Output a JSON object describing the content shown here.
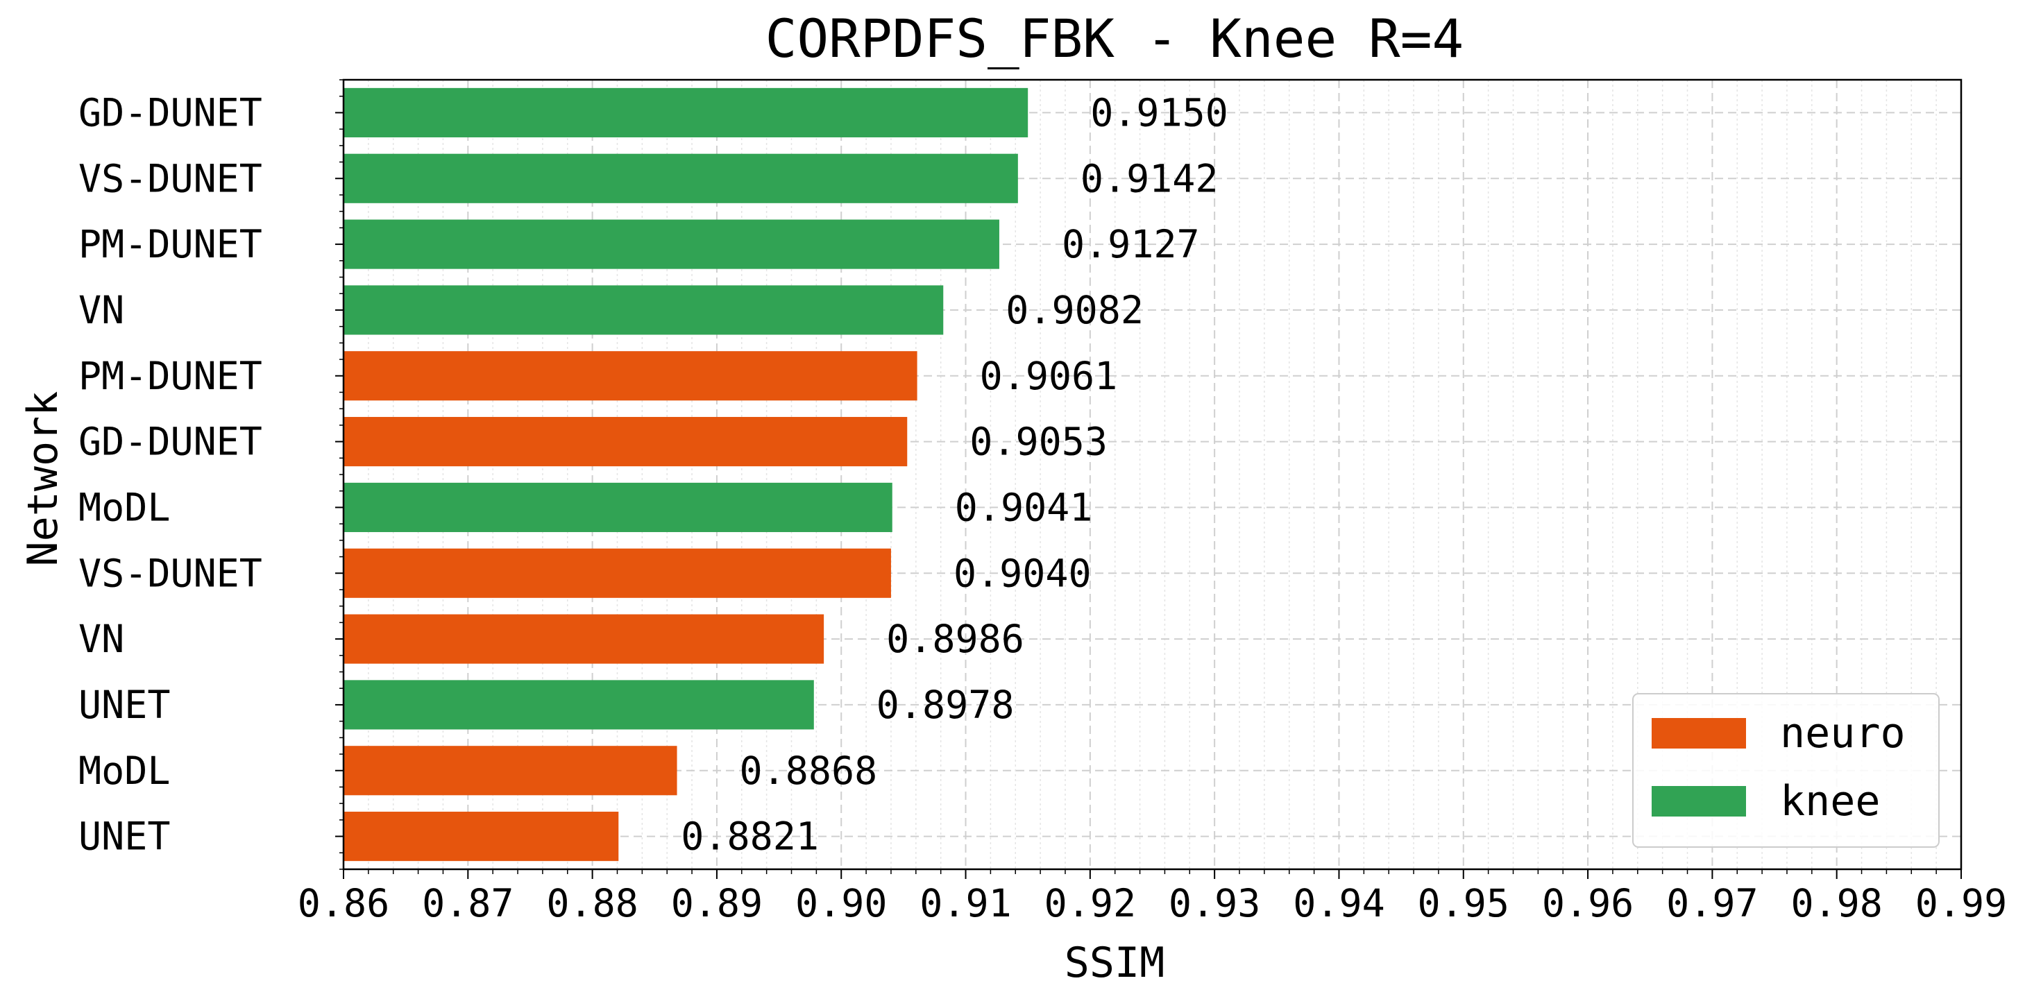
{
  "chart_data": {
    "type": "bar",
    "orientation": "horizontal",
    "title": "CORPDFS_FBK - Knee R=4",
    "xlabel": "SSIM",
    "ylabel": "Network",
    "xlim": [
      0.86,
      0.99
    ],
    "xticks": [
      "0.86",
      "0.87",
      "0.88",
      "0.89",
      "0.90",
      "0.91",
      "0.92",
      "0.93",
      "0.94",
      "0.95",
      "0.96",
      "0.97",
      "0.98",
      "0.99"
    ],
    "grid": true,
    "legend_position": "bottom-right",
    "legend": [
      {
        "name": "neuro",
        "color": "#e6550d"
      },
      {
        "name": "knee",
        "color": "#31a354"
      }
    ],
    "bars": [
      {
        "label": "GD-DUNET",
        "value": 0.915,
        "value_label": "0.9150",
        "group": "knee"
      },
      {
        "label": "VS-DUNET",
        "value": 0.9142,
        "value_label": "0.9142",
        "group": "knee"
      },
      {
        "label": "PM-DUNET",
        "value": 0.9127,
        "value_label": "0.9127",
        "group": "knee"
      },
      {
        "label": "VN",
        "value": 0.9082,
        "value_label": "0.9082",
        "group": "knee"
      },
      {
        "label": "PM-DUNET",
        "value": 0.9061,
        "value_label": "0.9061",
        "group": "neuro"
      },
      {
        "label": "GD-DUNET",
        "value": 0.9053,
        "value_label": "0.9053",
        "group": "neuro"
      },
      {
        "label": "MoDL",
        "value": 0.9041,
        "value_label": "0.9041",
        "group": "knee"
      },
      {
        "label": "VS-DUNET",
        "value": 0.904,
        "value_label": "0.9040",
        "group": "neuro"
      },
      {
        "label": "VN",
        "value": 0.8986,
        "value_label": "0.8986",
        "group": "neuro"
      },
      {
        "label": "UNET",
        "value": 0.8978,
        "value_label": "0.8978",
        "group": "knee"
      },
      {
        "label": "MoDL",
        "value": 0.8868,
        "value_label": "0.8868",
        "group": "neuro"
      },
      {
        "label": "UNET",
        "value": 0.8821,
        "value_label": "0.8821",
        "group": "neuro"
      }
    ]
  }
}
